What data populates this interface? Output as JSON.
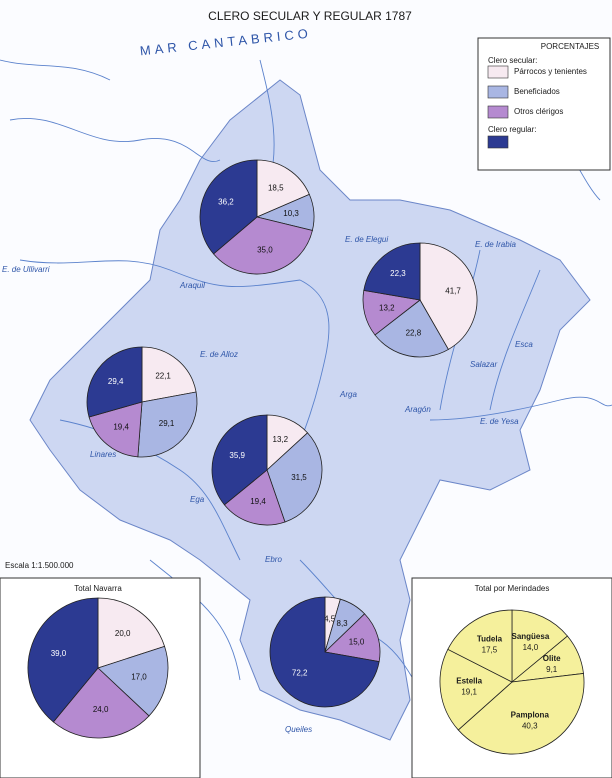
{
  "title": "CLERO SECULAR Y REGULAR  1787",
  "legend": {
    "title": "PORCENTAJES",
    "headings": [
      "Clero secular:",
      "Clero regular:"
    ],
    "items": [
      {
        "label": "Párrocos y tenientes",
        "color": "#f7eaf1"
      },
      {
        "label": "Beneficiados",
        "color": "#a9b6e3"
      },
      {
        "label": "Otros clérigos",
        "color": "#b58ad0"
      },
      {
        "color": "#2c3a92"
      }
    ]
  },
  "map": {
    "sea": "MAR CANTABRICO",
    "scale": "Escala 1:1.500.000",
    "labels": [
      "E. de Ullivarri",
      "E. de Alloz",
      "E. de Elegui",
      "E. de Irabia",
      "E. de Yesa",
      "Araquil",
      "Arga",
      "Aragón",
      "Ega",
      "Salazar",
      "Esca",
      "Ebro",
      "Linares",
      "Queiles"
    ]
  },
  "pies": [
    {
      "values": [
        18.5,
        10.3,
        35.0,
        36.2
      ],
      "value_labels": [
        "18,5",
        "10,3",
        "35,0",
        "36,2"
      ]
    },
    {
      "values": [
        41.7,
        22.8,
        13.2,
        22.3
      ],
      "value_labels": [
        "41,7",
        "22,8",
        "13,2",
        "22,3"
      ]
    },
    {
      "values": [
        22.1,
        29.1,
        19.4,
        29.4
      ],
      "value_labels": [
        "22,1",
        "29,1",
        "19,4",
        "29,4"
      ]
    },
    {
      "values": [
        13.2,
        31.5,
        19.4,
        35.9
      ],
      "value_labels": [
        "13,2",
        "31,5",
        "19,4",
        "35,9"
      ]
    },
    {
      "values": [
        4.5,
        8.3,
        15.0,
        72.2
      ],
      "value_labels": [
        "4,5",
        "8,3",
        "15,0",
        "72,2"
      ]
    }
  ],
  "total_navarra": {
    "title": "Total Navarra",
    "values": [
      20.0,
      17.0,
      24.0,
      39.0
    ],
    "value_labels": [
      "20,0",
      "17,0",
      "24,0",
      "39,0"
    ]
  },
  "merindades": {
    "title": "Total por Merindades",
    "color": "#f5f09c",
    "names": [
      "Sangüesa",
      "Olite",
      "Pamplona",
      "Estella",
      "Tudela"
    ],
    "values": [
      14.0,
      9.1,
      40.3,
      19.1,
      17.5
    ],
    "value_labels": [
      "14,0",
      "9,1",
      "40,3",
      "19,1",
      "17,5"
    ]
  }
}
